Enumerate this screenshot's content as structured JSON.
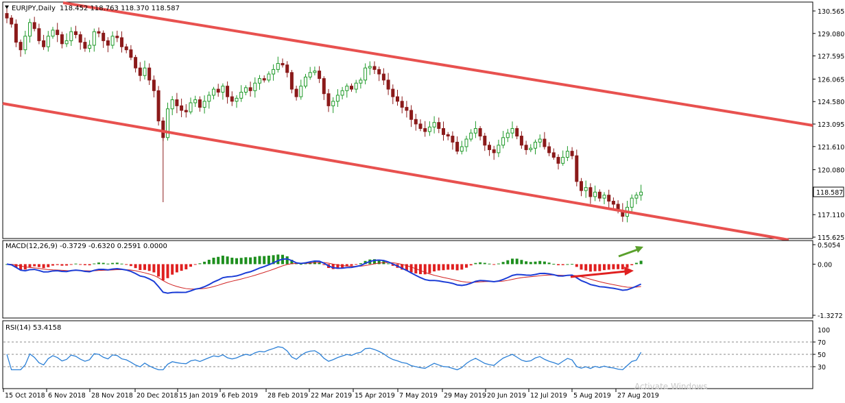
{
  "symbol_label": "EURJPY,Daily",
  "ohlc_text": "118.452 118.763 118.370 118.587",
  "current_price": "118.587",
  "price_axis": [
    "130.565",
    "129.080",
    "127.595",
    "126.065",
    "124.580",
    "123.095",
    "121.610",
    "120.080",
    "117.110",
    "115.625"
  ],
  "macd_label": "MACD(12,26,9) -0.3729 -0.6320 0.2591 0.0000",
  "macd_axis": [
    "0.5054",
    "0.00",
    "-1.3272"
  ],
  "rsi_label": "RSI(14) 53.4158",
  "rsi_axis": [
    "70",
    "50",
    "30"
  ],
  "rsi_extra_axis": [
    "100"
  ],
  "date_axis": [
    "15 Oct 2018",
    "6 Nov 2018",
    "28 Nov 2018",
    "20 Dec 2018",
    "15 Jan 2019",
    "6 Feb 2019",
    "28 Feb 2019",
    "22 Mar 2019",
    "15 Apr 2019",
    "7 May 2019",
    "29 May 2019",
    "20 Jun 2019",
    "12 Jul 2019",
    "5 Aug 2019",
    "27 Aug 2019"
  ],
  "watermark": "Activate Windows",
  "colors": {
    "bull_candle": "#1e9a28",
    "bear_candle": "#8b1a1a",
    "channel": "#e8514f",
    "macd_pos": "#1e8f1e",
    "macd_neg": "#e02020",
    "macd_line": "#1a3cd6",
    "signal_line": "#d02020",
    "rsi_line": "#2a7fd6",
    "arrow_green": "#5aa02c",
    "arrow_red": "#e02020"
  },
  "chart_data": {
    "type": "candlestick",
    "symbol": "EURJPY",
    "timeframe": "Daily",
    "last": {
      "open": 118.452,
      "high": 118.763,
      "low": 118.37,
      "close": 118.587
    },
    "price_range": [
      115.2,
      131.1
    ],
    "close_series": [
      130.1,
      129.7,
      128.5,
      128.0,
      128.9,
      129.8,
      129.4,
      128.6,
      128.2,
      128.9,
      129.3,
      129.0,
      128.4,
      128.6,
      129.2,
      129.0,
      128.5,
      128.1,
      128.3,
      129.2,
      129.1,
      128.6,
      128.3,
      128.9,
      128.8,
      128.2,
      128.0,
      127.5,
      126.8,
      126.3,
      126.8,
      126.0,
      125.3,
      123.3,
      122.2,
      124.1,
      124.7,
      124.3,
      124.0,
      123.9,
      124.5,
      124.7,
      124.2,
      124.6,
      125.0,
      125.4,
      125.2,
      125.6,
      124.9,
      124.6,
      124.8,
      125.2,
      125.5,
      125.3,
      125.8,
      126.1,
      126.0,
      126.4,
      126.7,
      127.1,
      127.0,
      126.5,
      125.4,
      124.9,
      125.6,
      126.2,
      126.5,
      126.6,
      126.1,
      125.1,
      124.3,
      124.6,
      125.0,
      125.3,
      125.6,
      125.4,
      125.8,
      126.0,
      126.8,
      126.9,
      126.7,
      126.4,
      126.0,
      125.4,
      124.9,
      124.6,
      124.2,
      124.0,
      123.4,
      123.1,
      122.8,
      122.6,
      122.9,
      123.2,
      122.8,
      122.4,
      122.3,
      121.9,
      121.3,
      121.6,
      122.1,
      122.5,
      122.8,
      122.3,
      121.7,
      121.4,
      121.2,
      121.7,
      122.2,
      122.5,
      122.8,
      122.3,
      121.7,
      121.4,
      121.5,
      121.9,
      122.1,
      121.6,
      121.2,
      120.9,
      120.5,
      120.9,
      121.3,
      121.0,
      119.3,
      118.7,
      118.9,
      118.3,
      118.6,
      118.2,
      118.4,
      118.0,
      117.8,
      117.4,
      117.0,
      117.6,
      118.2,
      118.4,
      118.6
    ],
    "channel_upper": {
      "from": {
        "date": "15 Oct 2018",
        "price": 131.0
      },
      "to": {
        "date": "5 Sep 2019",
        "price": 123.0
      }
    },
    "channel_lower": {
      "from": {
        "date": "15 Oct 2018",
        "price": 124.5
      },
      "to": {
        "date": "5 Sep 2019",
        "price": 115.4
      }
    },
    "macd": {
      "params": "12,26,9",
      "main": -0.3729,
      "signal": -0.632,
      "histogram": 0.2591,
      "levels": [
        0.5054,
        0.0,
        -1.3272
      ]
    },
    "rsi": {
      "period": 14,
      "value": 53.4158,
      "levels": [
        70,
        50,
        30
      ]
    }
  }
}
